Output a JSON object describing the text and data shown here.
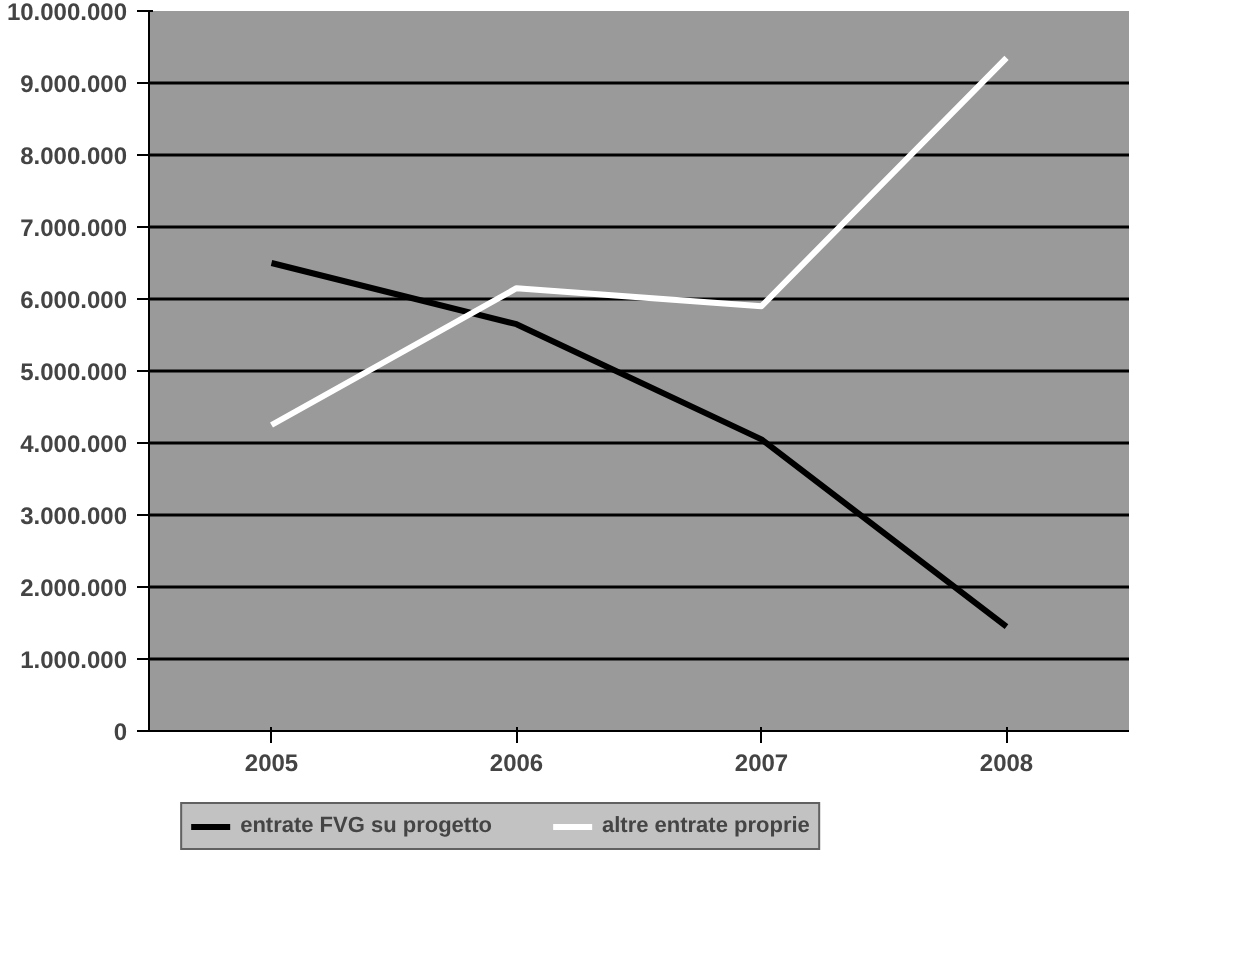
{
  "chart_data": {
    "type": "line",
    "categories": [
      "2005",
      "2006",
      "2007",
      "2008"
    ],
    "series": [
      {
        "name": "entrate FVG su progetto",
        "color": "#000000",
        "values": [
          6500000,
          5650000,
          4050000,
          1450000
        ]
      },
      {
        "name": "altre entrate proprie",
        "color": "#ffffff",
        "values": [
          4250000,
          6150000,
          5900000,
          9350000
        ]
      }
    ],
    "ylim": [
      0,
      10000000
    ],
    "yticks": [
      {
        "value": 0,
        "label": "0"
      },
      {
        "value": 1000000,
        "label": "1.000.000"
      },
      {
        "value": 2000000,
        "label": "2.000.000"
      },
      {
        "value": 3000000,
        "label": "3.000.000"
      },
      {
        "value": 4000000,
        "label": "4.000.000"
      },
      {
        "value": 5000000,
        "label": "5.000.000"
      },
      {
        "value": 6000000,
        "label": "6.000.000"
      },
      {
        "value": 7000000,
        "label": "7.000.000"
      },
      {
        "value": 8000000,
        "label": "8.000.000"
      },
      {
        "value": 9000000,
        "label": "9.000.000"
      },
      {
        "value": 10000000,
        "label": "10.000.000"
      }
    ],
    "grid": "y",
    "legend": "bottom",
    "marker": "none",
    "line_style": "solid"
  }
}
